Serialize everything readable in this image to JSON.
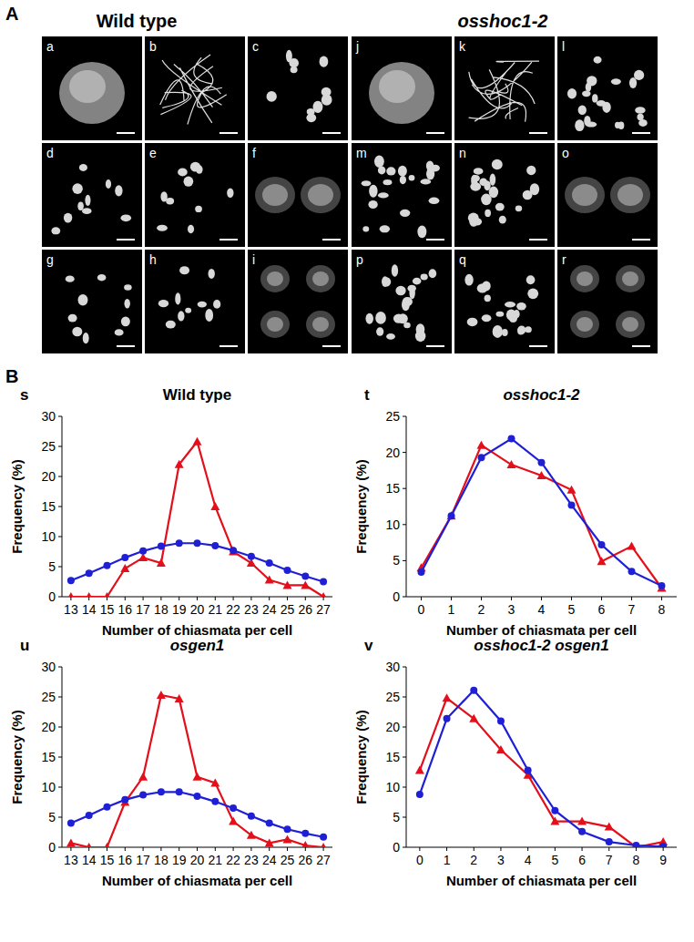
{
  "figure": {
    "panel_a": {
      "label": "A",
      "headers": [
        "Wild type",
        "osshoc1-2"
      ],
      "images": [
        "a",
        "b",
        "c",
        "d",
        "e",
        "f",
        "g",
        "h",
        "i",
        "j",
        "k",
        "l",
        "m",
        "n",
        "o",
        "p",
        "q",
        "r"
      ]
    },
    "panel_b": {
      "label": "B"
    }
  },
  "chart_data": [
    {
      "type": "line",
      "title": "Wild type",
      "annotations": [
        "s"
      ],
      "x_label": "Number of chiasmata per cell",
      "y_label": "Frequency (%)",
      "x": [
        13,
        14,
        15,
        16,
        17,
        18,
        19,
        20,
        21,
        22,
        23,
        24,
        25,
        26,
        27
      ],
      "xlim": [
        12.5,
        27.5
      ],
      "xticks": [
        13,
        14,
        15,
        16,
        17,
        18,
        19,
        20,
        21,
        22,
        23,
        24,
        25,
        26,
        27
      ],
      "ylim": [
        0,
        30
      ],
      "yticks": [
        0,
        5,
        10,
        15,
        20,
        25,
        30
      ],
      "series": [
        {
          "color": "#e3101b",
          "marker": "triangle",
          "values": [
            0,
            0,
            0,
            4.7,
            6.5,
            5.6,
            22,
            25.8,
            15,
            7.5,
            5.6,
            2.8,
            1.9,
            1.9,
            0
          ]
        },
        {
          "color": "#1f1fd6",
          "marker": "circle",
          "values": [
            2.7,
            3.9,
            5.2,
            6.5,
            7.6,
            8.4,
            8.9,
            8.9,
            8.5,
            7.7,
            6.7,
            5.6,
            4.4,
            3.4,
            2.5
          ]
        }
      ]
    },
    {
      "type": "line",
      "title": "osshoc1-2",
      "annotations": [
        "t"
      ],
      "x_label": "Number of chiasmata per cell",
      "y_label": "Frequency (%)",
      "x": [
        0,
        1,
        2,
        3,
        4,
        5,
        6,
        7,
        8
      ],
      "xlim": [
        -0.5,
        8.5
      ],
      "xticks": [
        0,
        1,
        2,
        3,
        4,
        5,
        6,
        7,
        8
      ],
      "ylim": [
        0,
        25
      ],
      "yticks": [
        0,
        5,
        10,
        15,
        20,
        25
      ],
      "series": [
        {
          "color": "#e3101b",
          "marker": "triangle",
          "values": [
            4,
            11.2,
            21,
            18.3,
            16.8,
            14.8,
            4.9,
            7,
            1.2
          ]
        },
        {
          "color": "#1f1fd6",
          "marker": "circle",
          "values": [
            3.4,
            11.2,
            19.3,
            21.9,
            18.6,
            12.7,
            7.2,
            3.5,
            1.5
          ]
        }
      ]
    },
    {
      "type": "line",
      "title": "osgen1",
      "annotations": [
        "u"
      ],
      "x_label": "Number of chiasmata per cell",
      "y_label": "Frequency (%)",
      "x": [
        13,
        14,
        15,
        16,
        17,
        18,
        19,
        20,
        21,
        22,
        23,
        24,
        25,
        26,
        27
      ],
      "xlim": [
        12.5,
        27.5
      ],
      "xticks": [
        13,
        14,
        15,
        16,
        17,
        18,
        19,
        20,
        21,
        22,
        23,
        24,
        25,
        26,
        27
      ],
      "ylim": [
        0,
        30
      ],
      "yticks": [
        0,
        5,
        10,
        15,
        20,
        25,
        30
      ],
      "series": [
        {
          "color": "#e3101b",
          "marker": "triangle",
          "values": [
            0.7,
            0,
            0,
            7.5,
            11.7,
            25.3,
            24.7,
            11.7,
            10.7,
            4.3,
            2,
            0.7,
            1.3,
            0.3,
            0
          ]
        },
        {
          "color": "#1f1fd6",
          "marker": "circle",
          "values": [
            4,
            5.3,
            6.7,
            7.9,
            8.7,
            9.2,
            9.2,
            8.5,
            7.6,
            6.5,
            5.2,
            4,
            3,
            2.3,
            1.7
          ]
        }
      ]
    },
    {
      "type": "line",
      "title": "osshoc1-2 osgen1",
      "annotations": [
        "v"
      ],
      "x_label": "Number of chiasmata per cell",
      "y_label": "Frequency (%)",
      "x": [
        0,
        1,
        2,
        3,
        4,
        5,
        6,
        7,
        8,
        9
      ],
      "xlim": [
        -0.5,
        9.5
      ],
      "xticks": [
        0,
        1,
        2,
        3,
        4,
        5,
        6,
        7,
        8,
        9
      ],
      "ylim": [
        0,
        30
      ],
      "yticks": [
        0,
        5,
        10,
        15,
        20,
        25,
        30
      ],
      "series": [
        {
          "color": "#e3101b",
          "marker": "triangle",
          "values": [
            12.8,
            24.8,
            21.4,
            16.2,
            12,
            4.3,
            4.3,
            3.4,
            0,
            0.9
          ]
        },
        {
          "color": "#1f1fd6",
          "marker": "circle",
          "values": [
            8.8,
            21.4,
            26.1,
            21,
            12.8,
            6.1,
            2.6,
            0.9,
            0.3,
            0.1
          ]
        }
      ]
    }
  ]
}
